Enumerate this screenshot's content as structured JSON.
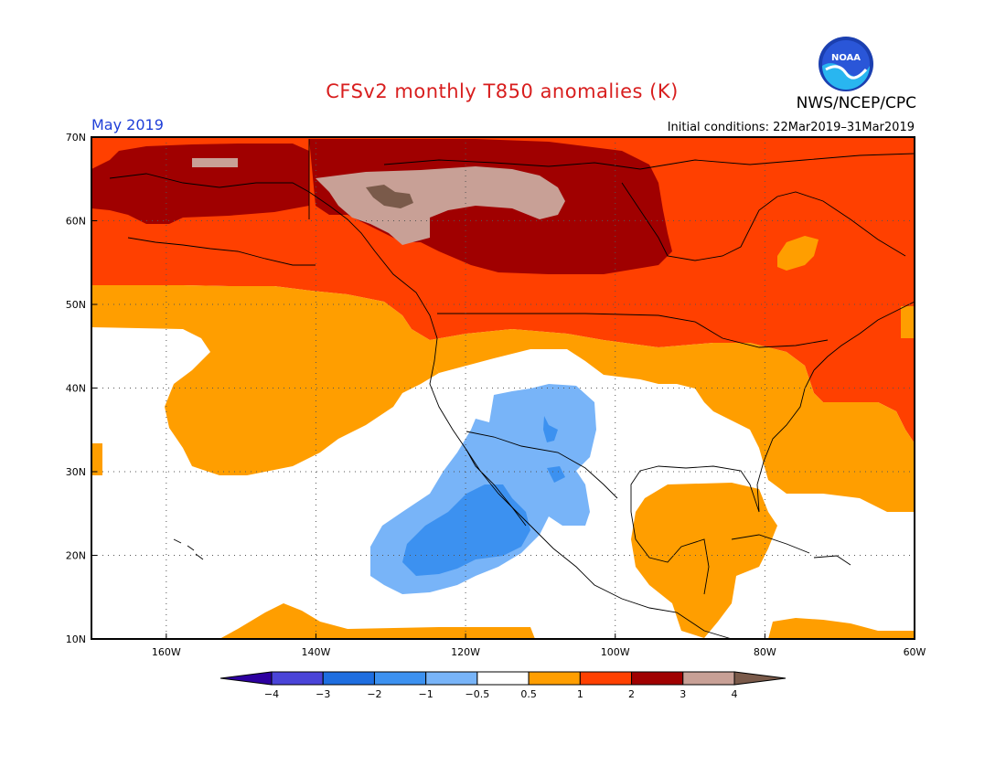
{
  "title": "CFSv2 monthly T850 anomalies (K)",
  "month_label": "May 2019",
  "init_label": "Initial conditions: 22Mar2019–31Mar2019",
  "agency_label": "NWS/NCEP/CPC",
  "logo_text": "NOAA",
  "map": {
    "lon_range": [
      -170,
      -60
    ],
    "lat_range": [
      10,
      70
    ],
    "lat_ticks": [
      {
        "value": 70,
        "label": "70N"
      },
      {
        "value": 60,
        "label": "60N"
      },
      {
        "value": 50,
        "label": "50N"
      },
      {
        "value": 40,
        "label": "40N"
      },
      {
        "value": 30,
        "label": "30N"
      },
      {
        "value": 20,
        "label": "20N"
      },
      {
        "value": 10,
        "label": "10N"
      }
    ],
    "lon_ticks": [
      {
        "value": -160,
        "label": "160W"
      },
      {
        "value": -140,
        "label": "140W"
      },
      {
        "value": -120,
        "label": "120W"
      },
      {
        "value": -100,
        "label": "100W"
      },
      {
        "value": -80,
        "label": "80W"
      },
      {
        "value": -60,
        "label": "60W"
      }
    ],
    "grid": true
  },
  "colorbar": {
    "levels": [
      "-4",
      "-3",
      "-2",
      "-1",
      "-0.5",
      "0.5",
      "1",
      "2",
      "3",
      "4"
    ],
    "colors": [
      "#2d00a0",
      "#4a44d8",
      "#1e6ee0",
      "#3c91f0",
      "#78b4f8",
      "#ffffff",
      "#ff9e00",
      "#ff4000",
      "#a00000",
      "#c8a096",
      "#7a5a4a"
    ]
  },
  "colors": {
    "c_pos3": "#c8a096",
    "c_pos4": "#7a5a4a",
    "c_pos2": "#a00000",
    "c_pos1": "#ff4000",
    "c_pos05": "#ff9e00",
    "c_neg05": "#78b4f8",
    "c_neg1": "#3c91f0"
  }
}
